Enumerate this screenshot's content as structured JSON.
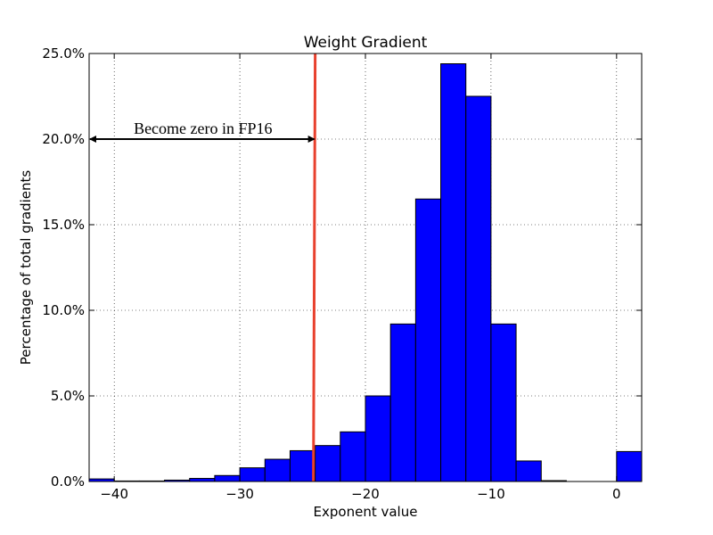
{
  "chart_data": {
    "type": "bar",
    "title": "Weight Gradient",
    "xlabel": "Exponent value",
    "ylabel": "Percentage of total gradients",
    "xlim": [
      -42,
      2
    ],
    "ylim": [
      0,
      25
    ],
    "x_ticks": [
      -40,
      -30,
      -20,
      -10,
      0
    ],
    "x_tick_labels": [
      "−40",
      "−30",
      "−20",
      "−10",
      "0"
    ],
    "y_ticks": [
      0,
      5,
      10,
      15,
      20,
      25
    ],
    "y_tick_labels": [
      "0.0%",
      "5.0%",
      "10.0%",
      "15.0%",
      "20.0%",
      "25.0%"
    ],
    "grid": true,
    "bar_color": "#0000ff",
    "bin_width": 2,
    "bins": [
      {
        "x0": -42,
        "value": 0.15
      },
      {
        "x0": -40,
        "value": 0.03
      },
      {
        "x0": -38,
        "value": 0.03
      },
      {
        "x0": -36,
        "value": 0.08
      },
      {
        "x0": -34,
        "value": 0.18
      },
      {
        "x0": -32,
        "value": 0.35
      },
      {
        "x0": -30,
        "value": 0.8
      },
      {
        "x0": -28,
        "value": 1.3
      },
      {
        "x0": -26,
        "value": 1.8
      },
      {
        "x0": -24,
        "value": 2.1
      },
      {
        "x0": -22,
        "value": 2.9
      },
      {
        "x0": -20,
        "value": 5.0
      },
      {
        "x0": -18,
        "value": 9.2
      },
      {
        "x0": -16,
        "value": 16.5
      },
      {
        "x0": -14,
        "value": 24.4
      },
      {
        "x0": -12,
        "value": 22.5
      },
      {
        "x0": -10,
        "value": 9.2
      },
      {
        "x0": -8,
        "value": 1.2
      },
      {
        "x0": -6,
        "value": 0.05
      },
      {
        "x0": -4,
        "value": 0.0
      },
      {
        "x0": -2,
        "value": 0.0
      },
      {
        "x0": 0,
        "value": 1.75
      }
    ],
    "threshold_line": {
      "x": -24,
      "color": "#e8412e"
    },
    "annotation": {
      "text": "Become zero in FP16",
      "arrow_from_x": -42,
      "arrow_to_x": -24,
      "y": 20
    }
  }
}
